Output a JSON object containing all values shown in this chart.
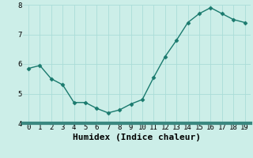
{
  "x": [
    0,
    1,
    2,
    3,
    4,
    5,
    6,
    7,
    8,
    9,
    10,
    11,
    12,
    13,
    14,
    15,
    16,
    17,
    18,
    19
  ],
  "y": [
    5.85,
    5.95,
    5.5,
    5.3,
    4.7,
    4.7,
    4.5,
    4.35,
    4.45,
    4.65,
    4.8,
    5.55,
    6.25,
    6.8,
    7.4,
    7.7,
    7.9,
    7.7,
    7.5,
    7.4
  ],
  "line_color": "#1a7a6e",
  "bg_color": "#cceee8",
  "grid_color": "#aaddd8",
  "xlabel": "Humidex (Indice chaleur)",
  "ylim": [
    4.0,
    8.0
  ],
  "xlim": [
    -0.5,
    19.5
  ],
  "yticks": [
    4,
    5,
    6,
    7,
    8
  ],
  "xticks": [
    0,
    1,
    2,
    3,
    4,
    5,
    6,
    7,
    8,
    9,
    10,
    11,
    12,
    13,
    14,
    15,
    16,
    17,
    18,
    19
  ],
  "marker": "D",
  "marker_size": 2.5,
  "line_width": 1.0,
  "xlabel_fontsize": 8,
  "tick_fontsize": 6.5,
  "bottom_bar_color": "#3a8880"
}
